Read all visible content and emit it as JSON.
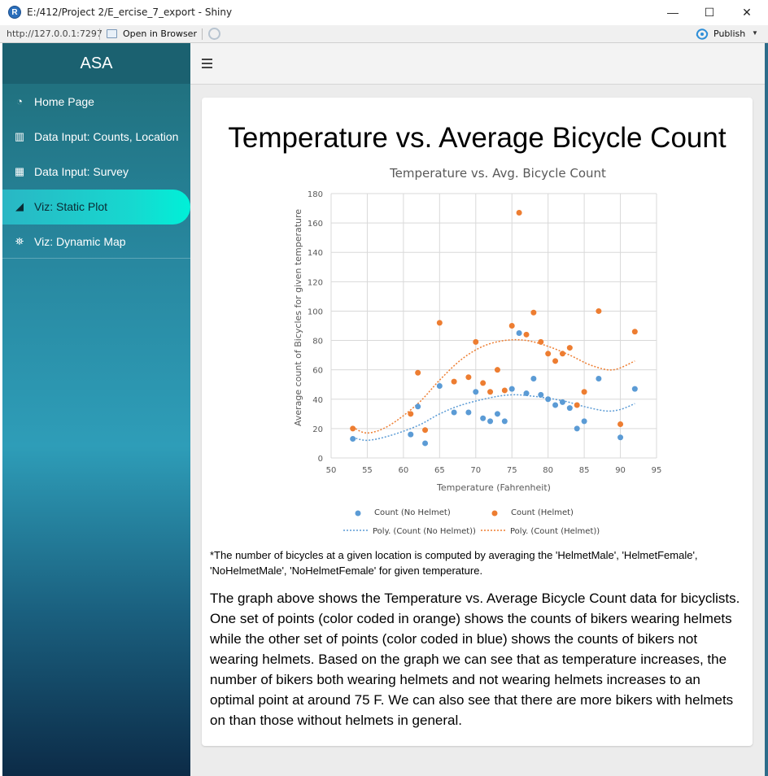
{
  "window": {
    "title": "E:/412/Project 2/E_ercise_7_export - Shiny",
    "minimize": "—",
    "maximize": "☐",
    "close": "✕"
  },
  "toolbar": {
    "url": "http://127.0.0.1:7297",
    "open_in_browser": "Open in Browser",
    "publish": "Publish"
  },
  "sidebar": {
    "brand": "ASA",
    "items": [
      {
        "label": "Home Page",
        "icon": "dashboard-icon"
      },
      {
        "label": "Data Input: Counts, Location",
        "icon": "bar-chart-icon"
      },
      {
        "label": "Data Input: Survey",
        "icon": "grid-icon"
      },
      {
        "label": "Viz: Static Plot",
        "icon": "area-chart-icon",
        "active": true
      },
      {
        "label": "Viz: Dynamic Map",
        "icon": "map-icon"
      }
    ]
  },
  "main": {
    "page_title": "Temperature vs. Average Bicycle Count",
    "footnote": "*The number of bicycles at a given location is computed by averaging the 'HelmetMale', 'HelmetFemale', 'NoHelmetMale', 'NoHelmetFemale' for given temperature.",
    "description": "The graph above shows the Temperature vs. Average Bicycle Count data for bicyclists. One set of points (color coded in orange) shows the counts of bikers wearing helmets while the other set of points (color coded in blue) shows the counts of bikers not wearing helmets. Based on the graph we can see that as temperature increases, the number of bikers both wearing helmets and not wearing helmets increases to an optimal point at around 75 F. We can also see that there are more bikers with helmets on than those without helmets in general."
  },
  "colors": {
    "no_helmet": "#5b9bd5",
    "helmet": "#ed7d31",
    "active_nav": "#16d9d0"
  },
  "chart_data": {
    "type": "scatter",
    "title": "Temperature vs. Avg. Bicycle Count",
    "xlabel": "Temperature (Fahrenheit)",
    "ylabel": "Average count of Bicycles for given temperature",
    "xlim": [
      50,
      95
    ],
    "ylim": [
      0,
      180
    ],
    "xticks": [
      50,
      55,
      60,
      65,
      70,
      75,
      80,
      85,
      90,
      95
    ],
    "yticks": [
      0,
      20,
      40,
      60,
      80,
      100,
      120,
      140,
      160,
      180
    ],
    "grid": true,
    "legend_position": "bottom",
    "series": [
      {
        "name": "Count (No Helmet)",
        "color": "#5b9bd5",
        "points": [
          [
            53,
            13
          ],
          [
            61,
            16
          ],
          [
            62,
            35
          ],
          [
            63,
            10
          ],
          [
            65,
            49
          ],
          [
            67,
            31
          ],
          [
            69,
            31
          ],
          [
            70,
            45
          ],
          [
            71,
            27
          ],
          [
            72,
            25
          ],
          [
            73,
            30
          ],
          [
            74,
            25
          ],
          [
            75,
            47
          ],
          [
            76,
            85
          ],
          [
            77,
            44
          ],
          [
            78,
            54
          ],
          [
            79,
            43
          ],
          [
            80,
            40
          ],
          [
            81,
            36
          ],
          [
            82,
            38
          ],
          [
            83,
            34
          ],
          [
            84,
            20
          ],
          [
            85,
            25
          ],
          [
            87,
            54
          ],
          [
            90,
            14
          ],
          [
            92,
            47
          ]
        ]
      },
      {
        "name": "Count (Helmet)",
        "color": "#ed7d31",
        "points": [
          [
            53,
            20
          ],
          [
            61,
            30
          ],
          [
            62,
            58
          ],
          [
            63,
            19
          ],
          [
            65,
            92
          ],
          [
            67,
            52
          ],
          [
            69,
            55
          ],
          [
            70,
            79
          ],
          [
            71,
            51
          ],
          [
            72,
            45
          ],
          [
            73,
            60
          ],
          [
            74,
            46
          ],
          [
            75,
            90
          ],
          [
            76,
            167
          ],
          [
            77,
            84
          ],
          [
            78,
            99
          ],
          [
            79,
            79
          ],
          [
            80,
            71
          ],
          [
            81,
            66
          ],
          [
            82,
            71
          ],
          [
            83,
            75
          ],
          [
            84,
            36
          ],
          [
            85,
            45
          ],
          [
            87,
            100
          ],
          [
            90,
            23
          ],
          [
            92,
            86
          ]
        ]
      },
      {
        "name": "Poly. (Count (No Helmet))",
        "color": "#5b9bd5",
        "style": "dotted",
        "points": [
          [
            53,
            14
          ],
          [
            55,
            12
          ],
          [
            58,
            15
          ],
          [
            62,
            22
          ],
          [
            65,
            30
          ],
          [
            68,
            36
          ],
          [
            72,
            41
          ],
          [
            75,
            43
          ],
          [
            78,
            42
          ],
          [
            82,
            39
          ],
          [
            85,
            35
          ],
          [
            88,
            32
          ],
          [
            90,
            33
          ],
          [
            92,
            37
          ]
        ]
      },
      {
        "name": "Poly. (Count (Helmet))",
        "color": "#ed7d31",
        "style": "dotted",
        "points": [
          [
            53,
            21
          ],
          [
            55,
            17
          ],
          [
            58,
            22
          ],
          [
            62,
            37
          ],
          [
            65,
            53
          ],
          [
            68,
            67
          ],
          [
            71,
            76
          ],
          [
            74,
            80
          ],
          [
            77,
            80
          ],
          [
            80,
            76
          ],
          [
            83,
            70
          ],
          [
            86,
            63
          ],
          [
            89,
            60
          ],
          [
            92,
            66
          ]
        ]
      }
    ]
  }
}
